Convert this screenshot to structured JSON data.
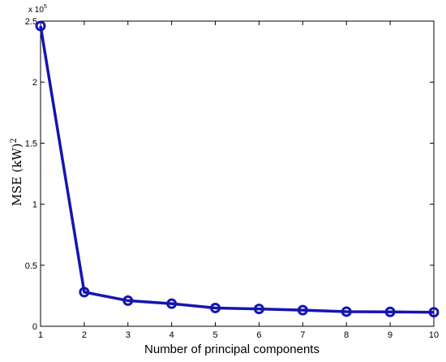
{
  "chart_data": {
    "type": "line",
    "xlabel": "Number of principal components",
    "ylabel": "MSE (kW)²",
    "ylabel_base": "MSE (kW)",
    "ylabel_sup": "2",
    "y_multiplier": {
      "base": "x 10",
      "exponent": "5"
    },
    "x": [
      1,
      2,
      3,
      4,
      5,
      6,
      7,
      8,
      9,
      10
    ],
    "xlim": [
      1,
      10
    ],
    "ylim": [
      0,
      250000
    ],
    "xticks": [
      1,
      2,
      3,
      4,
      5,
      6,
      7,
      8,
      9,
      10
    ],
    "yticks": [
      0,
      50000,
      100000,
      150000,
      200000,
      250000
    ],
    "yticklabels": [
      "0",
      "0.5",
      "1",
      "1.5",
      "2",
      "2.5"
    ],
    "series": [
      {
        "values": [
          246000,
          28000,
          21000,
          18500,
          15000,
          14200,
          13200,
          12000,
          11800,
          11500
        ],
        "color": "#1515b0"
      }
    ],
    "grid": false,
    "marker": "circle"
  }
}
